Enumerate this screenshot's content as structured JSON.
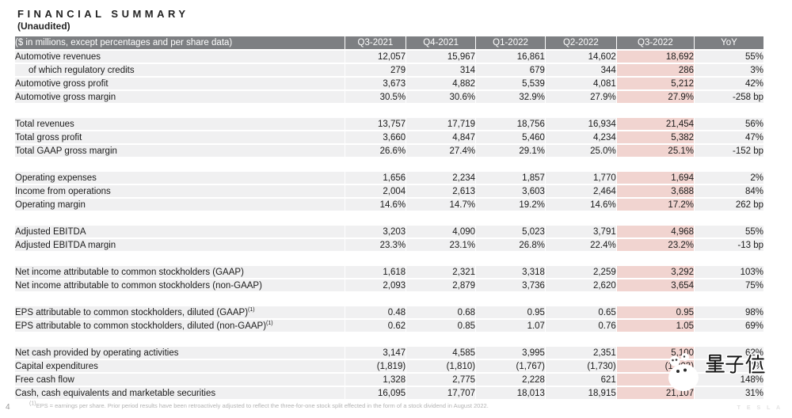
{
  "page": {
    "title": "FINANCIAL SUMMARY",
    "subtitle": "(Unaudited)",
    "page_number": "4",
    "brand_mark": "T E S L A",
    "footnote_sup": "(1)",
    "footnote_text": "EPS = earnings per share. Prior period results have been retroactively adjusted to reflect the three-for-one stock split effected in the form of a stock dividend in August 2022."
  },
  "colors": {
    "header_bg": "#7d7f82",
    "header_text": "#ffffff",
    "row_bg": "#f0f0f1",
    "highlight_bg": "#f1d4d0",
    "text": "#1b1b1b",
    "footnote_text": "#b3b3b3"
  },
  "watermark": {
    "text": "量子位",
    "icon": "qbitai-mascot-icon"
  },
  "table": {
    "unit_label": "($ in millions, except percentages and per share data)",
    "columns": [
      "Q3-2021",
      "Q4-2021",
      "Q1-2022",
      "Q2-2022",
      "Q3-2022",
      "YoY"
    ],
    "highlight_column": "Q3-2022",
    "blocks": [
      {
        "rows": [
          {
            "label": "Automotive revenues",
            "indent": false,
            "sup": "",
            "cells": [
              "12,057",
              "15,967",
              "16,861",
              "14,602",
              "18,692",
              "55%"
            ]
          },
          {
            "label": "of which regulatory credits",
            "indent": true,
            "sup": "",
            "cells": [
              "279",
              "314",
              "679",
              "344",
              "286",
              "3%"
            ]
          },
          {
            "label": "Automotive gross profit",
            "indent": false,
            "sup": "",
            "cells": [
              "3,673",
              "4,882",
              "5,539",
              "4,081",
              "5,212",
              "42%"
            ]
          },
          {
            "label": "Automotive gross margin",
            "indent": false,
            "sup": "",
            "cells": [
              "30.5%",
              "30.6%",
              "32.9%",
              "27.9%",
              "27.9%",
              "-258 bp"
            ]
          }
        ]
      },
      {
        "rows": [
          {
            "label": "Total revenues",
            "indent": false,
            "sup": "",
            "cells": [
              "13,757",
              "17,719",
              "18,756",
              "16,934",
              "21,454",
              "56%"
            ]
          },
          {
            "label": "Total gross profit",
            "indent": false,
            "sup": "",
            "cells": [
              "3,660",
              "4,847",
              "5,460",
              "4,234",
              "5,382",
              "47%"
            ]
          },
          {
            "label": "Total GAAP gross margin",
            "indent": false,
            "sup": "",
            "cells": [
              "26.6%",
              "27.4%",
              "29.1%",
              "25.0%",
              "25.1%",
              "-152 bp"
            ]
          }
        ]
      },
      {
        "rows": [
          {
            "label": "Operating expenses",
            "indent": false,
            "sup": "",
            "cells": [
              "1,656",
              "2,234",
              "1,857",
              "1,770",
              "1,694",
              "2%"
            ]
          },
          {
            "label": "Income from operations",
            "indent": false,
            "sup": "",
            "cells": [
              "2,004",
              "2,613",
              "3,603",
              "2,464",
              "3,688",
              "84%"
            ]
          },
          {
            "label": "Operating margin",
            "indent": false,
            "sup": "",
            "cells": [
              "14.6%",
              "14.7%",
              "19.2%",
              "14.6%",
              "17.2%",
              "262 bp"
            ]
          }
        ]
      },
      {
        "rows": [
          {
            "label": "Adjusted EBITDA",
            "indent": false,
            "sup": "",
            "cells": [
              "3,203",
              "4,090",
              "5,023",
              "3,791",
              "4,968",
              "55%"
            ]
          },
          {
            "label": "Adjusted EBITDA margin",
            "indent": false,
            "sup": "",
            "cells": [
              "23.3%",
              "23.1%",
              "26.8%",
              "22.4%",
              "23.2%",
              "-13 bp"
            ]
          }
        ]
      },
      {
        "rows": [
          {
            "label": "Net income attributable to common stockholders (GAAP)",
            "indent": false,
            "sup": "",
            "cells": [
              "1,618",
              "2,321",
              "3,318",
              "2,259",
              "3,292",
              "103%"
            ]
          },
          {
            "label": "Net income attributable to common stockholders (non-GAAP)",
            "indent": false,
            "sup": "",
            "cells": [
              "2,093",
              "2,879",
              "3,736",
              "2,620",
              "3,654",
              "75%"
            ]
          }
        ]
      },
      {
        "rows": [
          {
            "label": "EPS attributable to common stockholders, diluted (GAAP)",
            "indent": false,
            "sup": "(1)",
            "cells": [
              "0.48",
              "0.68",
              "0.95",
              "0.65",
              "0.95",
              "98%"
            ]
          },
          {
            "label": "EPS attributable to common stockholders, diluted (non-GAAP)",
            "indent": false,
            "sup": "(1)",
            "cells": [
              "0.62",
              "0.85",
              "1.07",
              "0.76",
              "1.05",
              "69%"
            ]
          }
        ]
      },
      {
        "rows": [
          {
            "label": "Net cash provided by operating activities",
            "indent": false,
            "sup": "",
            "cells": [
              "3,147",
              "4,585",
              "3,995",
              "2,351",
              "5,100",
              "62%"
            ]
          },
          {
            "label": "Capital expenditures",
            "indent": false,
            "sup": "",
            "cells": [
              "(1,819)",
              "(1,810)",
              "(1,767)",
              "(1,730)",
              "(1,803)",
              "-1%"
            ]
          },
          {
            "label": "Free cash flow",
            "indent": false,
            "sup": "",
            "cells": [
              "1,328",
              "2,775",
              "2,228",
              "621",
              "3,297",
              "148%"
            ]
          },
          {
            "label": "Cash, cash equivalents and marketable securities",
            "indent": false,
            "sup": "",
            "cells": [
              "16,095",
              "17,707",
              "18,013",
              "18,915",
              "21,107",
              "31%"
            ]
          }
        ]
      }
    ]
  }
}
